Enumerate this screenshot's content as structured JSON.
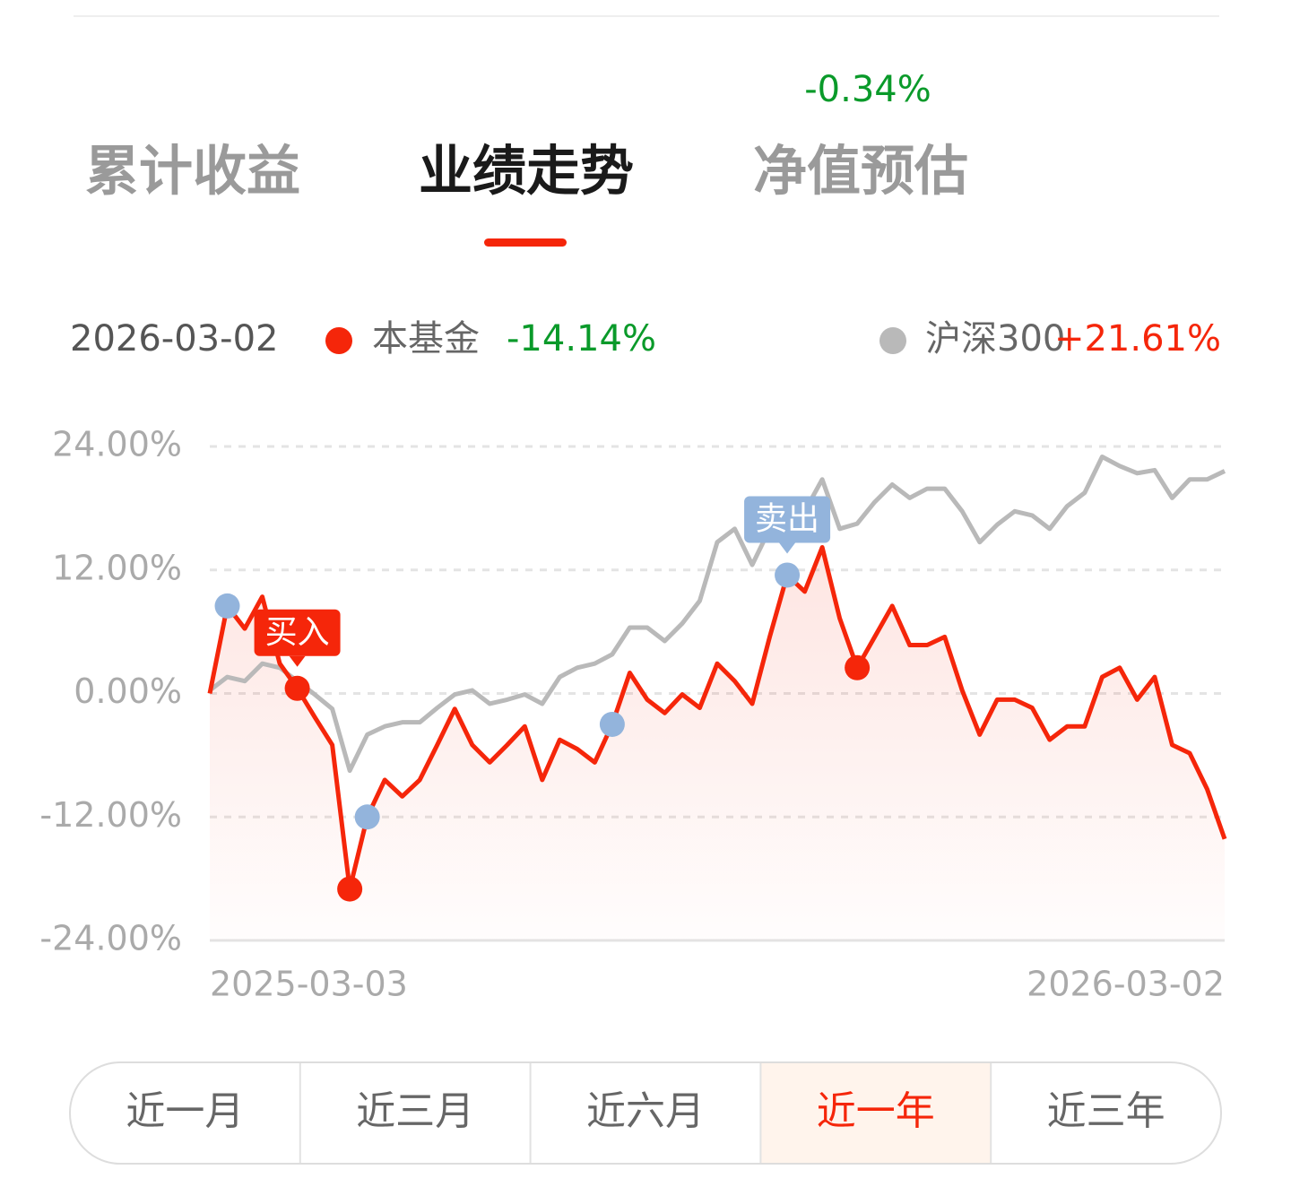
{
  "tabs": [
    "累计收益",
    "业绩走势",
    "净值预估"
  ],
  "active_tab": 1,
  "estimate": "-0.34%",
  "periods": [
    "近一月",
    "近三月",
    "近六月",
    "近一年",
    "近三年"
  ],
  "active_period": 3,
  "chart_data": {
    "type": "line",
    "date": "2026-03-02",
    "categories": [
      "2025-03-03",
      null,
      null,
      null,
      null,
      null,
      null,
      null,
      null,
      null,
      null,
      null,
      null,
      null,
      null,
      null,
      null,
      null,
      null,
      null,
      null,
      null,
      null,
      null,
      null,
      null,
      null,
      null,
      null,
      null,
      null,
      null,
      null,
      null,
      null,
      null,
      null,
      null,
      null,
      null,
      null,
      null,
      null,
      null,
      null,
      null,
      null,
      null,
      null,
      null,
      null,
      null,
      null,
      null,
      null,
      null,
      null,
      null,
      "2026-03-02"
    ],
    "series": [
      {
        "name": "本基金",
        "color": "#f5260a",
        "legend_label": "-14.14%",
        "legend_label_color": "#0a9a2a",
        "values": [
          0,
          8.5,
          6.3,
          9.4,
          2.9,
          0.5,
          -2.3,
          -5,
          -19,
          -12,
          -8.4,
          -10,
          -8.4,
          -5,
          -1.5,
          -5,
          -6.7,
          -5,
          -3.2,
          -8.4,
          -4.5,
          -5.4,
          -6.7,
          -3,
          2,
          -0.6,
          -1.9,
          -0.1,
          -1.4,
          2.9,
          1.2,
          -1,
          5.5,
          11.5,
          9.9,
          14.2,
          7.3,
          2.5,
          5.5,
          8.5,
          4.7,
          4.7,
          5.5,
          0.3,
          -4,
          -0.6,
          -0.6,
          -1.4,
          -4.5,
          -3.2,
          -3.2,
          1.6,
          2.5,
          -0.6,
          1.6,
          -5,
          -5.8,
          -9.3,
          -14.14
        ]
      },
      {
        "name": "沪深300",
        "color": "#b9b9b9",
        "legend_label": "+21.61%",
        "legend_label_color": "#f5260a",
        "values": [
          0.3,
          1.6,
          1.2,
          2.9,
          2.5,
          1.2,
          -0.1,
          -1.5,
          -7.5,
          -4,
          -3.2,
          -2.8,
          -2.8,
          -1.4,
          -0.1,
          0.3,
          -1,
          -0.6,
          -0.1,
          -1,
          1.6,
          2.5,
          2.9,
          3.8,
          6.4,
          6.4,
          5.1,
          6.8,
          9,
          14.7,
          16,
          12.5,
          16,
          15.1,
          17.7,
          20.8,
          16,
          16.5,
          18.6,
          20.3,
          19,
          19.9,
          19.9,
          17.7,
          14.7,
          16.4,
          17.7,
          17.3,
          16,
          18.2,
          19.5,
          23,
          22.1,
          21.4,
          21.7,
          19,
          20.8,
          20.8,
          21.61
        ]
      }
    ],
    "buy_points": [
      5,
      8,
      37
    ],
    "buy_label": "买入",
    "buy_color": "#f5260a",
    "sell_points": [
      1,
      9,
      23,
      33
    ],
    "sell_label": "卖出",
    "sell_color": "#93b4dc",
    "ylim": [
      -24,
      24
    ],
    "yticks": [
      {
        "value": -24,
        "label": "-24.00%"
      },
      {
        "value": -12,
        "label": "-12.00%"
      },
      {
        "value": 0,
        "label": "0.00%"
      },
      {
        "value": 12,
        "label": "12.00%"
      },
      {
        "value": 24,
        "label": "24.00%"
      }
    ],
    "grid": true
  }
}
